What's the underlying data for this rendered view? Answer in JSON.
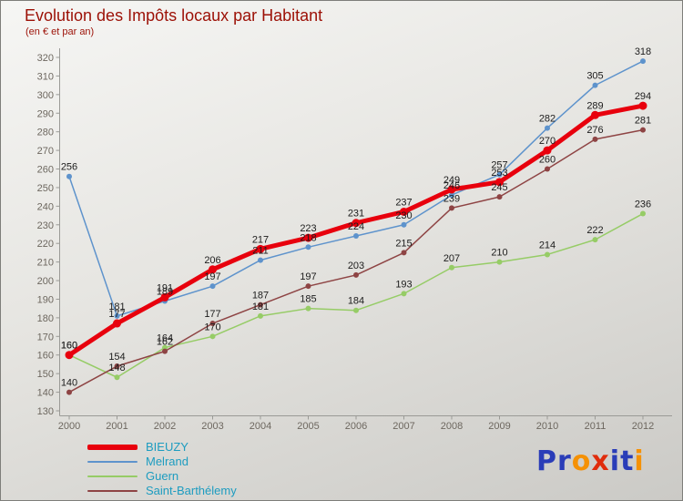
{
  "title": "Evolution des Impôts locaux par Habitant",
  "subtitle": "(en € et par an)",
  "ui_colors": {
    "title_text": "#9c1006",
    "axis_text": "#6d675f",
    "axis_line": "#9a9a96",
    "data_label": "#1c1c1c",
    "legend_text": "#1d9cc0",
    "background_top": "#f6f6f4",
    "background_bottom": "#cbcac6"
  },
  "chart_data": {
    "type": "line",
    "x": [
      2000,
      2001,
      2002,
      2003,
      2004,
      2005,
      2006,
      2007,
      2008,
      2009,
      2010,
      2011,
      2012
    ],
    "ylim": [
      130,
      320
    ],
    "ytick_step": 10,
    "grid": false,
    "legend_position": "bottom-left",
    "point_labels": true,
    "series": [
      {
        "name": "BIEUZY",
        "color": "#e8000d",
        "width": 5,
        "marker_r": 4.5,
        "values": [
          160,
          177,
          191,
          206,
          217,
          223,
          231,
          237,
          249,
          253,
          270,
          289,
          294
        ]
      },
      {
        "name": "Melrand",
        "color": "#5e93cc",
        "width": 1.5,
        "marker_r": 3,
        "values": [
          256,
          181,
          189,
          197,
          211,
          218,
          224,
          230,
          246,
          257,
          282,
          305,
          318
        ]
      },
      {
        "name": "Guern",
        "color": "#96cc66",
        "width": 1.5,
        "marker_r": 3,
        "values": [
          160,
          148,
          164,
          170,
          181,
          185,
          184,
          193,
          207,
          210,
          214,
          222,
          236
        ]
      },
      {
        "name": "Saint-Barthélemy",
        "color": "#8e4444",
        "width": 1.5,
        "marker_r": 3,
        "values": [
          140,
          154,
          162,
          177,
          187,
          197,
          203,
          215,
          239,
          245,
          260,
          276,
          281
        ]
      }
    ]
  },
  "logo": {
    "text": "Proxiti",
    "letters": [
      {
        "ch": "P",
        "color": "#2a3db8"
      },
      {
        "ch": "r",
        "color": "#2a3db8"
      },
      {
        "ch": "o",
        "color": "#f59105"
      },
      {
        "ch": "x",
        "color": "#e02c0c"
      },
      {
        "ch": "i",
        "color": "#2a3db8"
      },
      {
        "ch": "t",
        "color": "#2a3db8"
      },
      {
        "ch": "i",
        "color": "#f59105"
      }
    ]
  }
}
